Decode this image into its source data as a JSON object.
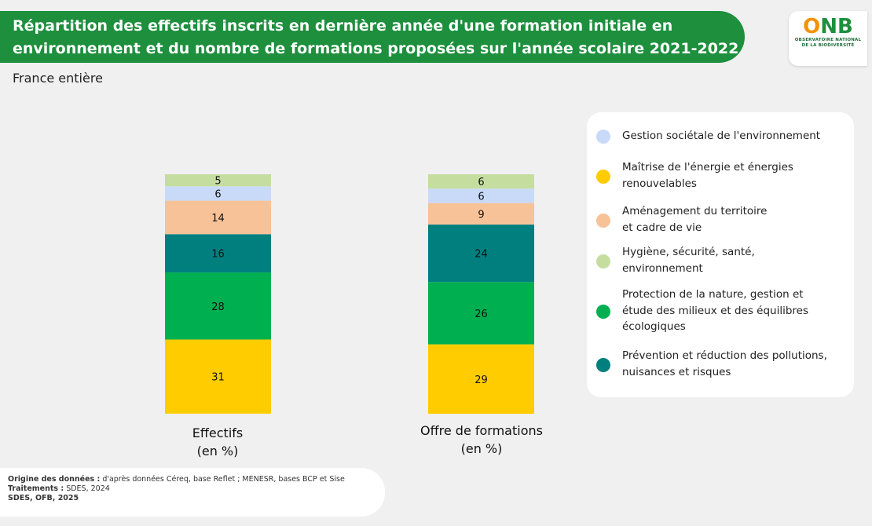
{
  "header": {
    "title_line1": "Répartition des effectifs inscrits en dernière année d'une formation initiale en",
    "title_line2": "environnement et du nombre de formations proposées sur l'année scolaire 2021-2022",
    "subtitle": "France entière"
  },
  "logo": {
    "text_o": "O",
    "text_nb": "NB",
    "sub_line1": "OBSERVATOIRE NATIONAL",
    "sub_line2": "DE LA BIODIVERSITÉ"
  },
  "chart_data": {
    "type": "bar",
    "stacked": true,
    "categories": [
      "Effectifs",
      "Offre de formations"
    ],
    "category_labels": [
      {
        "line1": "Effectifs",
        "line2": "(en %)"
      },
      {
        "line1": "Offre de formations",
        "line2": "(en %)"
      }
    ],
    "series": [
      {
        "name": "Maîtrise de l'énergie et énergies renouvelables",
        "color": "#ffcc00",
        "values": [
          31,
          29
        ]
      },
      {
        "name": "Protection de la nature, gestion et étude des milieux et des équilibres écologiques",
        "color": "#00b050",
        "values": [
          28,
          26
        ]
      },
      {
        "name": "Prévention et réduction des pollutions, nuisances et risques",
        "color": "#007f7f",
        "values": [
          16,
          24
        ]
      },
      {
        "name": "Aménagement du territoire et cadre de vie",
        "color": "#f8c298",
        "values": [
          14,
          9
        ]
      },
      {
        "name": "Gestion sociétale de l'environnement",
        "color": "#c9daf8",
        "values": [
          6,
          6
        ]
      },
      {
        "name": "Hygiène, sécurité, santé, environnement",
        "color": "#c5dea0",
        "values": [
          5,
          6
        ]
      }
    ],
    "ylim": [
      0,
      100
    ],
    "grid": false,
    "legend_position": "right"
  },
  "legend": {
    "items": [
      {
        "lines": [
          "Gestion sociétale de l'environnement"
        ],
        "color": "#c9daf8"
      },
      {
        "lines": [
          "Maîtrise de l'énergie et énergies",
          "renouvelables"
        ],
        "color": "#ffcc00"
      },
      {
        "lines": [
          "Aménagement du territoire",
          "et cadre de vie"
        ],
        "color": "#f8c298"
      },
      {
        "lines": [
          "Hygiène, sécurité, santé,",
          "environnement"
        ],
        "color": "#c5dea0"
      },
      {
        "lines": [
          "Protection de la nature, gestion et",
          "étude des milieux et des équilibres",
          "écologiques"
        ],
        "color": "#00b050"
      },
      {
        "lines": [
          "Prévention et réduction des pollutions,",
          "nuisances et risques"
        ],
        "color": "#007f7f"
      }
    ]
  },
  "source": {
    "origin_label": "Origine des données :",
    "origin_text": " d'après données Céreq, base Reflet ; MENESR, bases BCP et Sise",
    "treatments_label": "Traitements :",
    "treatments_text": " SDES, 2024",
    "credits": "SDES, OFB, 2025"
  }
}
